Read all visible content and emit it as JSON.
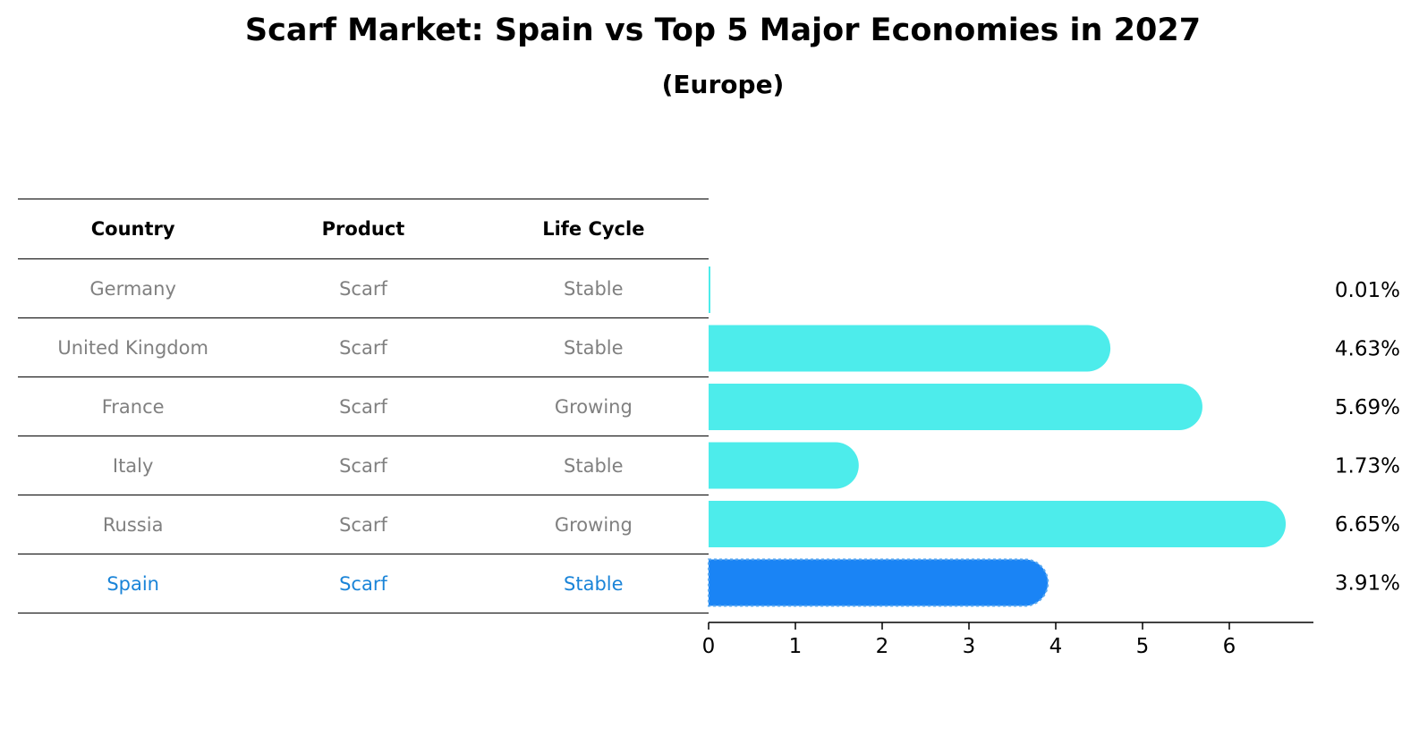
{
  "title": "Scarf Market: Spain vs Top 5 Major Economies in 2027",
  "subtitle": "(Europe)",
  "table": {
    "headers": [
      "Country",
      "Product",
      "Life Cycle"
    ],
    "rows": [
      [
        "Germany",
        "Scarf",
        "Stable"
      ],
      [
        "United Kingdom",
        "Scarf",
        "Stable"
      ],
      [
        "France",
        "Scarf",
        "Growing"
      ],
      [
        "Italy",
        "Scarf",
        "Stable"
      ],
      [
        "Russia",
        "Scarf",
        "Growing"
      ],
      [
        "Spain",
        "Scarf",
        "Stable"
      ]
    ],
    "highlight_row": 5
  },
  "colors": {
    "bar": "#4deceb",
    "highlight_bar": "#1a84f5",
    "highlight_text": "#1a84d8",
    "muted_text": "#808080"
  },
  "chart_data": {
    "type": "bar",
    "orientation": "horizontal",
    "categories": [
      "Germany",
      "United Kingdom",
      "France",
      "Italy",
      "Russia",
      "Spain"
    ],
    "values": [
      0.01,
      4.63,
      5.69,
      1.73,
      6.65,
      3.91
    ],
    "value_labels": [
      "0.01%",
      "4.63%",
      "5.69%",
      "1.73%",
      "6.65%",
      "3.91%"
    ],
    "xticks": [
      "0",
      "1",
      "2",
      "3",
      "4",
      "5",
      "6"
    ],
    "xlim": [
      0,
      7
    ],
    "highlight": "Spain",
    "grid": false
  }
}
